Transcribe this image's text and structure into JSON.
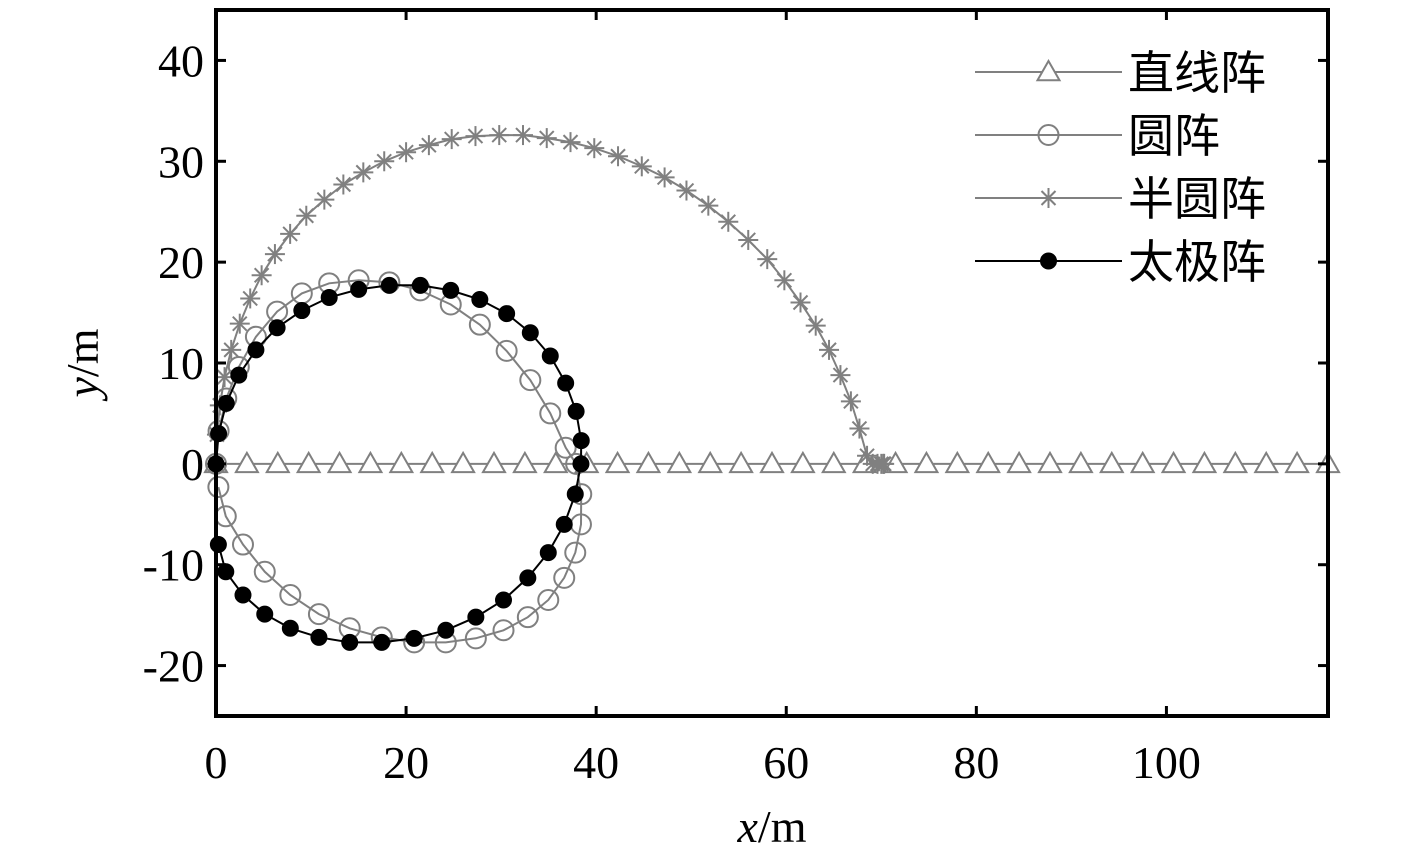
{
  "chart_data": {
    "type": "line",
    "xlabel": "x/m",
    "ylabel": "y/m",
    "xlim": [
      0,
      117
    ],
    "ylim": [
      -25,
      45
    ],
    "xticks": [
      0,
      20,
      40,
      60,
      80,
      100
    ],
    "yticks": [
      -20,
      -10,
      0,
      10,
      20,
      30,
      40
    ],
    "xtick_labels": [
      "0",
      "20",
      "40",
      "60",
      "80",
      "100"
    ],
    "ytick_labels": [
      "-20",
      "-10",
      "0",
      "10",
      "20",
      "30",
      "40"
    ],
    "grid": false,
    "legend_position": "top-right",
    "series": [
      {
        "name": "直线阵",
        "marker": "triangle",
        "color": "#808080",
        "x": [
          0,
          3.25,
          6.5,
          9.75,
          13,
          16.25,
          19.5,
          22.75,
          26,
          29.25,
          32.5,
          35.75,
          39,
          42.25,
          45.5,
          48.75,
          52,
          55.25,
          58.5,
          61.75,
          65,
          68.25,
          71.5,
          74.75,
          78,
          81.25,
          84.5,
          87.75,
          91,
          94.25,
          97.5,
          100.75,
          104,
          107.25,
          110.5,
          113.75,
          117
        ],
        "y": [
          0,
          0,
          0,
          0,
          0,
          0,
          0,
          0,
          0,
          0,
          0,
          0,
          0,
          0,
          0,
          0,
          0,
          0,
          0,
          0,
          0,
          0,
          0,
          0,
          0,
          0,
          0,
          0,
          0,
          0,
          0,
          0,
          0,
          0,
          0,
          0,
          0
        ]
      },
      {
        "name": "圆阵",
        "marker": "open-circle",
        "color": "#808080",
        "x": [
          0.0,
          0.27,
          1.08,
          2.4,
          4.2,
          6.43,
          9.03,
          11.91,
          15.01,
          18.24,
          21.5,
          24.7,
          27.76,
          30.58,
          33.07,
          35.17,
          36.79,
          37.89,
          38.43,
          38.4,
          37.8,
          36.64,
          34.96,
          32.81,
          30.25,
          27.34,
          24.18,
          20.85,
          17.44,
          14.07,
          10.83,
          7.82,
          5.13,
          2.84,
          1.03,
          0.25
        ],
        "y": [
          0.0,
          3.26,
          6.48,
          9.6,
          12.6,
          15.1,
          16.9,
          17.9,
          18.2,
          18.0,
          17.2,
          15.8,
          13.8,
          11.2,
          8.3,
          5.0,
          1.6,
          0.0,
          -3.0,
          -6.0,
          -8.8,
          -11.3,
          -13.5,
          -15.2,
          -16.5,
          -17.3,
          -17.7,
          -17.7,
          -17.2,
          -16.3,
          -14.9,
          -13.0,
          -10.7,
          -8.0,
          -5.2,
          -2.3
        ]
      },
      {
        "name": "半圆阵",
        "marker": "asterisk",
        "color": "#808080",
        "x": [
          0.0,
          0.1,
          0.4,
          0.9,
          1.6,
          2.5,
          3.6,
          4.8,
          6.2,
          7.8,
          9.5,
          11.4,
          13.4,
          15.5,
          17.7,
          20.0,
          22.4,
          24.8,
          27.3,
          29.8,
          32.3,
          34.8,
          37.3,
          39.8,
          42.3,
          44.8,
          47.2,
          49.5,
          51.8,
          53.9,
          56.0,
          58.0,
          59.8,
          61.5,
          63.1,
          64.5,
          65.7,
          66.8,
          67.7,
          68.5,
          69.1,
          69.6,
          70.0,
          70.2,
          70.3
        ],
        "y": [
          0.0,
          2.9,
          5.8,
          8.6,
          11.3,
          13.9,
          16.4,
          18.7,
          20.8,
          22.8,
          24.6,
          26.2,
          27.7,
          28.9,
          30.0,
          30.9,
          31.6,
          32.2,
          32.5,
          32.6,
          32.6,
          32.3,
          31.9,
          31.3,
          30.5,
          29.5,
          28.4,
          27.1,
          25.6,
          24.0,
          22.2,
          20.3,
          18.2,
          16.0,
          13.7,
          11.3,
          8.8,
          6.2,
          3.5,
          0.8,
          0.0,
          0.0,
          0.0,
          0.0,
          0.0
        ]
      },
      {
        "name": "太极阵",
        "marker": "filled-circle",
        "color": "#000000",
        "x": [
          0.0,
          0.27,
          1.08,
          2.4,
          4.2,
          6.43,
          9.03,
          11.91,
          15.01,
          18.24,
          21.5,
          24.7,
          27.76,
          30.58,
          33.07,
          35.17,
          36.79,
          37.89,
          38.43,
          38.4,
          37.8,
          36.64,
          34.96,
          32.81,
          30.25,
          27.34,
          24.18,
          20.85,
          17.44,
          14.07,
          10.83,
          7.82,
          5.13,
          2.84,
          1.03,
          0.25
        ],
        "y": [
          0.0,
          3.0,
          6.0,
          8.8,
          11.3,
          13.5,
          15.2,
          16.5,
          17.3,
          17.7,
          17.7,
          17.2,
          16.3,
          14.9,
          13.0,
          10.7,
          8.0,
          5.2,
          2.3,
          0.0,
          -3.0,
          -6.0,
          -8.8,
          -11.3,
          -13.5,
          -15.2,
          -16.5,
          -17.3,
          -17.7,
          -17.7,
          -17.2,
          -16.3,
          -14.9,
          -13.0,
          -10.7,
          -8.0
        ]
      }
    ]
  }
}
